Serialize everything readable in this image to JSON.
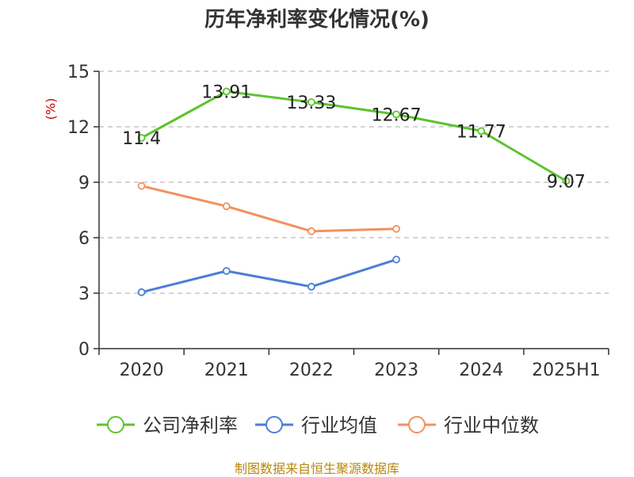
{
  "chart_data": {
    "type": "line",
    "title": "历年净利率变化情况(%)",
    "ylabel": "(%)",
    "categories": [
      "2020",
      "2021",
      "2022",
      "2023",
      "2024",
      "2025H1"
    ],
    "ylim": [
      0,
      15
    ],
    "yticks": [
      0,
      3,
      6,
      9,
      12,
      15
    ],
    "grid": "horizontal-dashed",
    "legend_position": "bottom",
    "series": [
      {
        "name": "公司净利率",
        "color": "#5cc42e",
        "values": [
          11.4,
          13.91,
          13.33,
          12.67,
          11.77,
          9.07
        ],
        "labels": [
          "11.4",
          "13.91",
          "13.33",
          "12.67",
          "11.77",
          "9.07"
        ]
      },
      {
        "name": "行业均值",
        "color": "#4a7fd6",
        "values": [
          3.05,
          4.2,
          3.35,
          4.82,
          null,
          null
        ]
      },
      {
        "name": "行业中位数",
        "color": "#f29160",
        "values": [
          8.8,
          7.7,
          6.35,
          6.48,
          null,
          null
        ]
      }
    ],
    "source": "制图数据来自恒生聚源数据库"
  }
}
